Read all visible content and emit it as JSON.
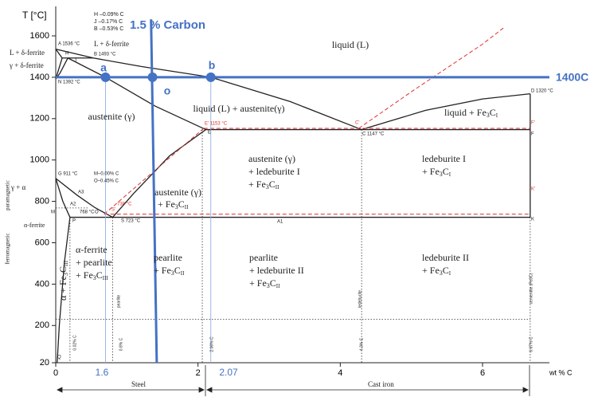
{
  "axes": {
    "y_title": "T [°C]",
    "x_title": "wt % C",
    "xticks": [
      0,
      2,
      4,
      6
    ],
    "yticks": [
      20,
      200,
      400,
      600,
      800,
      1000,
      1200,
      1400,
      1600
    ]
  },
  "annotations": {
    "carbon": "1.5 % Carbon",
    "isotherm": "1400C",
    "a": "a",
    "o": "o",
    "b": "b",
    "x_a": "1.6",
    "x_b": "2.07"
  },
  "colors": {
    "solid": "#222222",
    "dashed": "#e03030",
    "dotted": "#333333",
    "blue": "#4472c4",
    "blue-thin": "#8fb0e0"
  },
  "boundaries": [
    {
      "style": "solid",
      "points": [
        [
          0,
          1536
        ],
        [
          0.53,
          1493
        ],
        [
          1.2,
          1452
        ],
        [
          2.18,
          1400
        ],
        [
          3.3,
          1282
        ],
        [
          4.3,
          1147
        ]
      ]
    },
    {
      "style": "solid",
      "points": [
        [
          4.3,
          1147
        ],
        [
          5.2,
          1240
        ],
        [
          6.0,
          1295
        ],
        [
          6.67,
          1320
        ]
      ]
    },
    {
      "style": "solid",
      "points": [
        [
          0,
          1536
        ],
        [
          0.09,
          1493
        ]
      ]
    },
    {
      "style": "solid",
      "points": [
        [
          0.09,
          1493
        ],
        [
          0,
          1392
        ]
      ]
    },
    {
      "style": "solid",
      "points": [
        [
          0.09,
          1493
        ],
        [
          0.53,
          1493
        ]
      ]
    },
    {
      "style": "solid",
      "points": [
        [
          0.17,
          1493
        ],
        [
          0.06,
          1420
        ],
        [
          0,
          1392
        ]
      ]
    },
    {
      "style": "solid",
      "points": [
        [
          0.17,
          1493
        ],
        [
          0.7,
          1400
        ],
        [
          1.4,
          1260
        ],
        [
          2.11,
          1147
        ]
      ]
    },
    {
      "style": "solid",
      "points": [
        [
          2.11,
          1147
        ],
        [
          6.67,
          1147
        ]
      ]
    },
    {
      "style": "solid",
      "points": [
        [
          2.11,
          1147
        ],
        [
          1.6,
          1020
        ],
        [
          1.1,
          840
        ],
        [
          0.8,
          723
        ]
      ]
    },
    {
      "style": "solid",
      "points": [
        [
          0,
          911
        ],
        [
          0.3,
          830
        ],
        [
          0.55,
          770
        ],
        [
          0.8,
          723
        ]
      ]
    },
    {
      "style": "solid",
      "points": [
        [
          0,
          911
        ],
        [
          0.1,
          800
        ],
        [
          0.2,
          723
        ]
      ]
    },
    {
      "style": "solid",
      "points": [
        [
          0.2,
          723
        ],
        [
          6.67,
          723
        ]
      ]
    },
    {
      "style": "solid",
      "points": [
        [
          0.2,
          723
        ],
        [
          0.12,
          500
        ],
        [
          0.05,
          200
        ],
        [
          0.02,
          20
        ]
      ]
    },
    {
      "style": "solid",
      "points": [
        [
          6.67,
          723
        ],
        [
          6.67,
          1320
        ]
      ]
    },
    {
      "style": "dashed",
      "points": [
        [
          2.08,
          1153
        ],
        [
          6.67,
          1153
        ]
      ]
    },
    {
      "style": "dashed",
      "points": [
        [
          0.68,
          738
        ],
        [
          6.67,
          738
        ]
      ]
    },
    {
      "style": "dashed",
      "points": [
        [
          2.08,
          1153
        ],
        [
          0.68,
          738
        ]
      ]
    },
    {
      "style": "dashed",
      "points": [
        [
          4.26,
          1153
        ],
        [
          5.0,
          1330
        ],
        [
          6.0,
          1560
        ],
        [
          6.3,
          1640
        ]
      ]
    },
    {
      "style": "dotted",
      "points": [
        [
          0,
          768
        ],
        [
          0.45,
          768
        ]
      ]
    },
    {
      "style": "dotted",
      "points": [
        [
          0,
          230
        ],
        [
          6.67,
          230
        ]
      ]
    },
    {
      "style": "dotted",
      "points": [
        [
          0.2,
          723
        ],
        [
          0.2,
          20
        ]
      ]
    },
    {
      "style": "dotted",
      "points": [
        [
          0.8,
          723
        ],
        [
          0.8,
          20
        ]
      ]
    },
    {
      "style": "dotted",
      "points": [
        [
          2.06,
          1147
        ],
        [
          2.06,
          20
        ]
      ]
    },
    {
      "style": "dotted",
      "points": [
        [
          4.3,
          1147
        ],
        [
          4.3,
          20
        ]
      ]
    },
    {
      "style": "dotted",
      "points": [
        [
          6.67,
          723
        ],
        [
          6.67,
          20
        ]
      ]
    },
    {
      "style": "blue-thin",
      "points": [
        [
          0.7,
          1400
        ],
        [
          0.7,
          20
        ]
      ]
    },
    {
      "style": "blue-thin",
      "points": [
        [
          2.18,
          1400
        ],
        [
          2.18,
          20
        ]
      ]
    },
    {
      "style": "blue",
      "points": [
        [
          0,
          1400
        ],
        [
          6.94,
          1400
        ]
      ]
    },
    {
      "style": "blue",
      "points": [
        [
          1.34,
          1680
        ],
        [
          1.42,
          20
        ]
      ]
    }
  ],
  "markers": [
    [
      0.7,
      1400
    ],
    [
      1.36,
      1400
    ],
    [
      2.18,
      1400
    ]
  ],
  "notes": [
    "H –0.09% C",
    "J –0.17% C",
    "B –0.53% C",
    "L + δ-ferrite",
    "L + δ-ferrite",
    "γ + δ-ferrite",
    "A 1536 °C",
    "H",
    "B 1493 °C",
    "J",
    "N 1392 °C",
    "D 1320 °C",
    "E' 1153 °C",
    "C'",
    "F'",
    "E",
    "C 1147 °C",
    "F",
    "G 911 °C",
    "M–0.00% C",
    "O–0.45% C",
    "γ + α",
    "paramagnetic",
    "ferromagnetic",
    "A3",
    "A2",
    "738 °C",
    "768 °C",
    "M",
    "O",
    "S'",
    "K'",
    "P",
    "S 723 °C",
    "A1",
    "K",
    "α-ferrite",
    "Q",
    "0.02% C",
    "pearlite",
    "0.8% C",
    "2.06% C",
    "ledeburite",
    "4.3% C",
    "cementite (Fe3C)",
    "6.67% C",
    "Steel",
    "Cast iron"
  ],
  "region_labels": [
    [
      "liquid (L)"
    ],
    [
      "liquid (L) + austenite(γ)"
    ],
    [
      "austenite (γ)"
    ],
    [
      "liquid + Fe",
      "3",
      "C",
      "I"
    ],
    [
      "austenite (γ)"
    ],
    [
      "+ ledeburite I"
    ],
    [
      "+ Fe",
      "3",
      "C",
      "II"
    ],
    [
      "ledeburite I"
    ],
    [
      "+ Fe",
      "3",
      "C",
      "I"
    ],
    [
      "austenite (γ)"
    ],
    [
      "+ Fe",
      "3",
      "C",
      "II"
    ],
    [
      "α-ferrite"
    ],
    [
      "+ pearlite"
    ],
    [
      "+ Fe",
      "3",
      "C",
      "III"
    ],
    [
      "pearlite"
    ],
    [
      "+ Fe",
      "3",
      "C",
      "II"
    ],
    [
      "pearlite"
    ],
    [
      "+ ledeburite II"
    ],
    [
      "+ Fe",
      "3",
      "C",
      "II"
    ],
    [
      "ledeburite II"
    ],
    [
      "+ Fe",
      "3",
      "C",
      "I"
    ],
    [
      "α + Fe",
      "3",
      "C",
      "III"
    ]
  ]
}
